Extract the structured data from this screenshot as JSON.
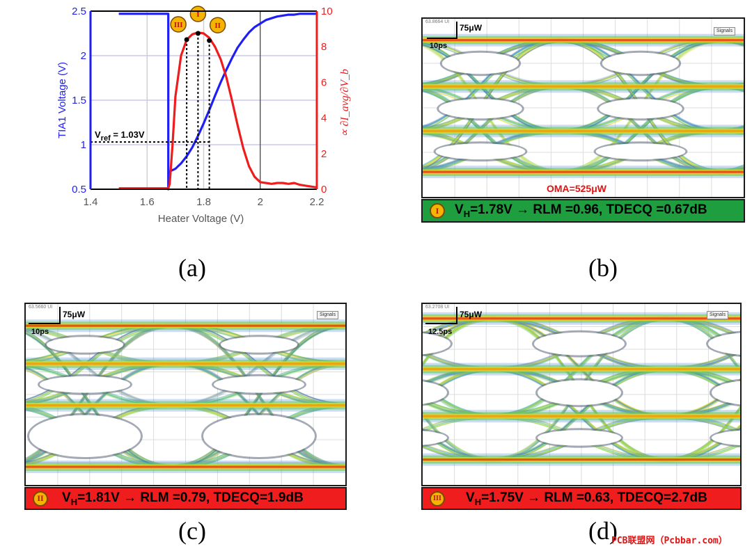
{
  "panels": {
    "a": {
      "caption": "(a)"
    },
    "b": {
      "caption": "(b)",
      "banner": "V_H=1.78V → RLM =0.96, TDECQ =0.67dB",
      "banner_main": "V",
      "banner_sub": "H",
      "banner_rest": "=1.78V → RLM =0.96, TDECQ =0.67dB",
      "marker": "I",
      "banner_color": "#1e9e3e",
      "scale_power": "75μW",
      "scale_time": "10ps",
      "oma": "OMA=525μW",
      "signals": "Signals",
      "top_label": "63.8664 UI"
    },
    "c": {
      "caption": "(c)",
      "banner": "V_H=1.81V → RLM =0.79, TDECQ=1.9dB",
      "banner_main": "V",
      "banner_sub": "H",
      "banner_rest": "=1.81V → RLM =0.79, TDECQ=1.9dB",
      "marker": "II",
      "banner_color": "#ef1d1d",
      "scale_power": "75μW",
      "scale_time": "10ps",
      "signals": "Signals",
      "top_label": "63.5660 UI"
    },
    "d": {
      "caption": "(d)",
      "banner": "V_H=1.75V → RLM =0.63, TDECQ=2.7dB",
      "banner_main": "V",
      "banner_sub": "H",
      "banner_rest": "=1.75V → RLM =0.63, TDECQ=2.7dB",
      "marker": "III",
      "banner_color": "#ef1d1d",
      "scale_power": "75μW",
      "scale_time": "12.5ps",
      "signals": "Signals",
      "top_label": "63.2708 UI"
    }
  },
  "watermark": "PCB联盟网（Pcbbar.com）",
  "chart_data": {
    "type": "line",
    "xlabel": "Heater Voltage (V)",
    "ylabel": "TIA1 Voltage (V)",
    "y2label": "∝ ∂I_avg/∂V_b",
    "xlim": [
      1.4,
      2.2
    ],
    "ylim": [
      0.5,
      2.5
    ],
    "y2lim": [
      0,
      10
    ],
    "xticks": [
      "1.4",
      "1.6",
      "1.8",
      "2",
      "2.2"
    ],
    "yticks": [
      "0.5",
      "1",
      "1.5",
      "2",
      "2.5"
    ],
    "y2ticks": [
      "0",
      "2",
      "4",
      "6",
      "8",
      "10"
    ],
    "grid": true,
    "colors": {
      "left": "#1f1ff5",
      "right": "#ee1c1c"
    },
    "annotation": {
      "text_main": "V",
      "text_sub": "ref",
      "text_rest": " = 1.03V",
      "y": 1.03
    },
    "markers": [
      {
        "label": "III",
        "x": 1.74,
        "y2": 8.4
      },
      {
        "label": "I",
        "x": 1.78,
        "y2": 8.75
      },
      {
        "label": "II",
        "x": 1.82,
        "y2": 8.35
      }
    ],
    "series": [
      {
        "axis": "left",
        "x": [
          1.5,
          1.675,
          1.675,
          1.68,
          1.7,
          1.72,
          1.74,
          1.76,
          1.78,
          1.8,
          1.82,
          1.84,
          1.86,
          1.88,
          1.9,
          1.92,
          1.94,
          1.96,
          1.98,
          2.0,
          2.02,
          2.04,
          2.06,
          2.08,
          2.1,
          2.12,
          2.14,
          2.16,
          2.18,
          2.2
        ],
        "y": [
          2.47,
          2.47,
          0.5,
          0.7,
          0.73,
          0.79,
          0.87,
          0.97,
          1.1,
          1.24,
          1.39,
          1.55,
          1.7,
          1.84,
          1.97,
          2.09,
          2.18,
          2.26,
          2.32,
          2.36,
          2.4,
          2.42,
          2.44,
          2.45,
          2.46,
          2.46,
          2.47,
          2.47,
          2.47,
          2.47
        ]
      },
      {
        "axis": "right",
        "x": [
          1.5,
          1.6,
          1.675,
          1.68,
          1.69,
          1.7,
          1.72,
          1.74,
          1.76,
          1.78,
          1.8,
          1.82,
          1.84,
          1.86,
          1.88,
          1.9,
          1.92,
          1.94,
          1.96,
          1.98,
          2.0,
          2.02,
          2.04,
          2.06,
          2.08,
          2.1,
          2.12,
          2.14,
          2.16,
          2.18,
          2.2
        ],
        "y": [
          0.05,
          0.05,
          0.05,
          0.3,
          2.5,
          5.2,
          7.5,
          8.4,
          8.7,
          8.8,
          8.75,
          8.5,
          8.0,
          7.3,
          6.3,
          5.0,
          3.6,
          2.3,
          1.3,
          0.7,
          0.4,
          0.35,
          0.3,
          0.35,
          0.35,
          0.3,
          0.35,
          0.25,
          0.2,
          0.15,
          0.1
        ]
      }
    ]
  }
}
